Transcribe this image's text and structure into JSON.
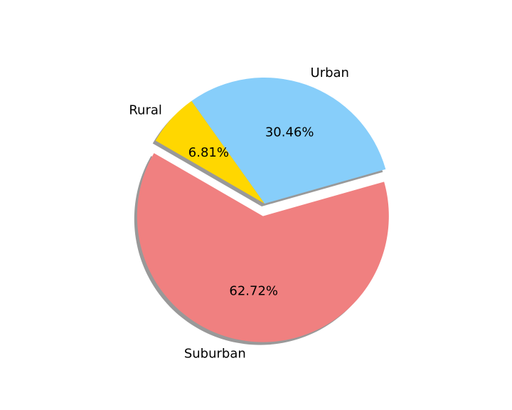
{
  "chart_data": {
    "type": "pie",
    "title": "",
    "slices": [
      {
        "label": "Suburban",
        "value": 62.72,
        "pct_label": "62.72%",
        "color": "#F08080",
        "explode": 0.1
      },
      {
        "label": "Urban",
        "value": 30.46,
        "pct_label": "30.46%",
        "color": "#87CEFA",
        "explode": 0.0
      },
      {
        "label": "Rural",
        "value": 6.81,
        "pct_label": "6.81%",
        "color": "#FFD700",
        "explode": 0.0
      }
    ],
    "start_angle_deg": 150,
    "direction": "counterclockwise",
    "shadow": true,
    "autopct": true
  }
}
